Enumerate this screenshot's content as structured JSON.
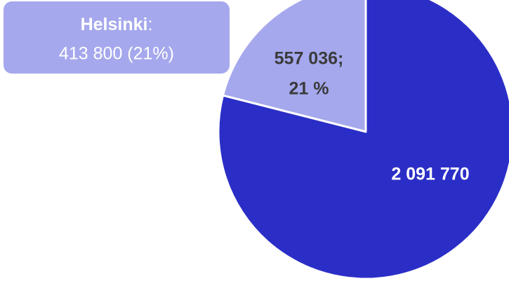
{
  "chart_data": {
    "type": "pie",
    "categories": [
      null,
      null
    ],
    "values": [
      557036,
      2091770
    ],
    "value_labels": [
      [
        "557 036;",
        "21 %"
      ],
      [
        "2 091 770"
      ]
    ],
    "colors": [
      "#a5a8ec",
      "#2b2ec6"
    ],
    "label_colors": [
      "#3a3a3a",
      "#ffffff"
    ],
    "annotation": {
      "title": "Helsinki",
      "separator": ":",
      "text": "413 800 (21%)",
      "color": "#a5a8ec"
    }
  }
}
